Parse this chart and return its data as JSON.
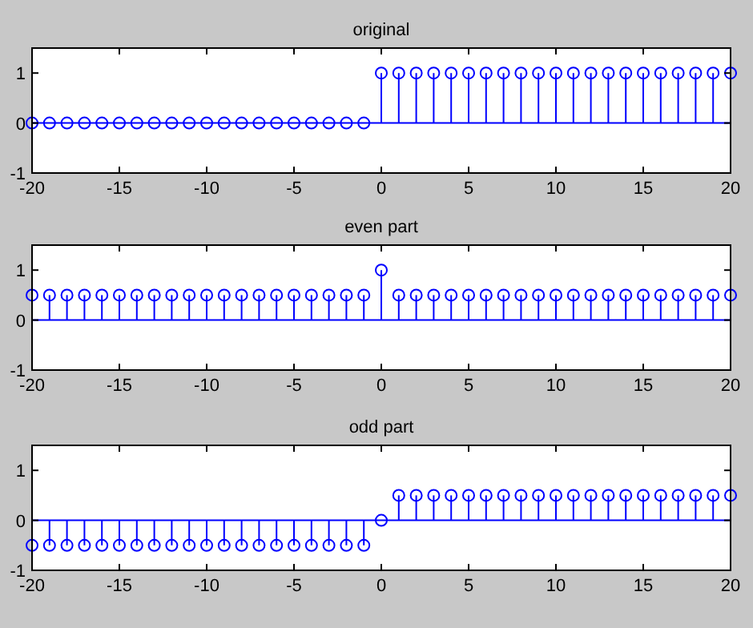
{
  "chart_data": [
    {
      "type": "lollipop",
      "title": "original",
      "x": [
        -20,
        -19,
        -18,
        -17,
        -16,
        -15,
        -14,
        -13,
        -12,
        -11,
        -10,
        -9,
        -8,
        -7,
        -6,
        -5,
        -4,
        -3,
        -2,
        -1,
        0,
        1,
        2,
        3,
        4,
        5,
        6,
        7,
        8,
        9,
        10,
        11,
        12,
        13,
        14,
        15,
        16,
        17,
        18,
        19,
        20
      ],
      "series": [
        {
          "color": "#0000ff",
          "values": [
            0,
            0,
            0,
            0,
            0,
            0,
            0,
            0,
            0,
            0,
            0,
            0,
            0,
            0,
            0,
            0,
            0,
            0,
            0,
            0,
            1,
            1,
            1,
            1,
            1,
            1,
            1,
            1,
            1,
            1,
            1,
            1,
            1,
            1,
            1,
            1,
            1,
            1,
            1,
            1,
            1
          ]
        }
      ],
      "xlim": [
        -20,
        20
      ],
      "xticks": [
        -20,
        -15,
        -10,
        -5,
        0,
        5,
        10,
        15,
        20
      ],
      "ylim": [
        -1,
        1.5
      ],
      "yticks": [
        -1,
        0,
        1
      ],
      "marker": "circle",
      "ref_lines": [
        {
          "axis": "y",
          "value": 0,
          "color": "#0000ff"
        }
      ]
    },
    {
      "type": "lollipop",
      "title": "even part",
      "x": [
        -20,
        -19,
        -18,
        -17,
        -16,
        -15,
        -14,
        -13,
        -12,
        -11,
        -10,
        -9,
        -8,
        -7,
        -6,
        -5,
        -4,
        -3,
        -2,
        -1,
        0,
        1,
        2,
        3,
        4,
        5,
        6,
        7,
        8,
        9,
        10,
        11,
        12,
        13,
        14,
        15,
        16,
        17,
        18,
        19,
        20
      ],
      "series": [
        {
          "color": "#0000ff",
          "values": [
            0.5,
            0.5,
            0.5,
            0.5,
            0.5,
            0.5,
            0.5,
            0.5,
            0.5,
            0.5,
            0.5,
            0.5,
            0.5,
            0.5,
            0.5,
            0.5,
            0.5,
            0.5,
            0.5,
            0.5,
            1,
            0.5,
            0.5,
            0.5,
            0.5,
            0.5,
            0.5,
            0.5,
            0.5,
            0.5,
            0.5,
            0.5,
            0.5,
            0.5,
            0.5,
            0.5,
            0.5,
            0.5,
            0.5,
            0.5,
            0.5
          ]
        }
      ],
      "xlim": [
        -20,
        20
      ],
      "xticks": [
        -20,
        -15,
        -10,
        -5,
        0,
        5,
        10,
        15,
        20
      ],
      "ylim": [
        -1,
        1.5
      ],
      "yticks": [
        -1,
        0,
        1
      ],
      "marker": "circle",
      "ref_lines": [
        {
          "axis": "y",
          "value": 0,
          "color": "#0000ff"
        }
      ]
    },
    {
      "type": "lollipop",
      "title": "odd part",
      "x": [
        -20,
        -19,
        -18,
        -17,
        -16,
        -15,
        -14,
        -13,
        -12,
        -11,
        -10,
        -9,
        -8,
        -7,
        -6,
        -5,
        -4,
        -3,
        -2,
        -1,
        0,
        1,
        2,
        3,
        4,
        5,
        6,
        7,
        8,
        9,
        10,
        11,
        12,
        13,
        14,
        15,
        16,
        17,
        18,
        19,
        20
      ],
      "series": [
        {
          "color": "#0000ff",
          "values": [
            -0.5,
            -0.5,
            -0.5,
            -0.5,
            -0.5,
            -0.5,
            -0.5,
            -0.5,
            -0.5,
            -0.5,
            -0.5,
            -0.5,
            -0.5,
            -0.5,
            -0.5,
            -0.5,
            -0.5,
            -0.5,
            -0.5,
            -0.5,
            0,
            0.5,
            0.5,
            0.5,
            0.5,
            0.5,
            0.5,
            0.5,
            0.5,
            0.5,
            0.5,
            0.5,
            0.5,
            0.5,
            0.5,
            0.5,
            0.5,
            0.5,
            0.5,
            0.5,
            0.5
          ]
        }
      ],
      "xlim": [
        -20,
        20
      ],
      "xticks": [
        -20,
        -15,
        -10,
        -5,
        0,
        5,
        10,
        15,
        20
      ],
      "ylim": [
        -1,
        1.5
      ],
      "yticks": [
        -1,
        0,
        1
      ],
      "marker": "circle",
      "ref_lines": [
        {
          "axis": "y",
          "value": 0,
          "color": "#0000ff"
        }
      ]
    }
  ]
}
